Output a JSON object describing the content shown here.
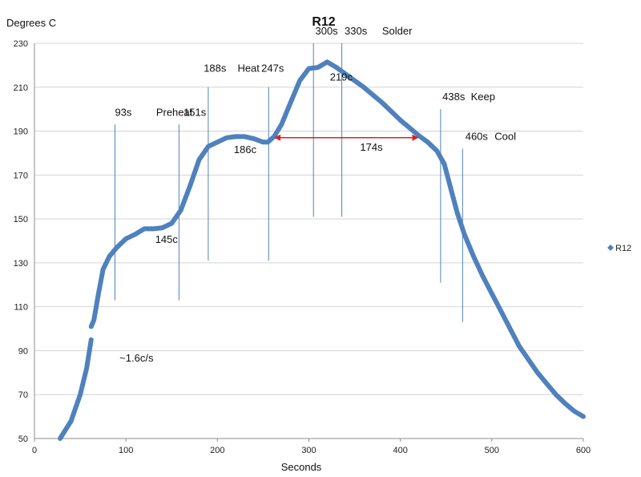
{
  "chart_data": {
    "type": "line",
    "title": "R12",
    "xlabel": "Seconds",
    "ylabel": "Degrees C",
    "xlim": [
      0,
      600
    ],
    "ylim": [
      50,
      230
    ],
    "x_ticks": [
      0,
      100,
      200,
      300,
      400,
      500,
      600
    ],
    "y_ticks": [
      50,
      70,
      90,
      110,
      130,
      150,
      170,
      190,
      210,
      230
    ],
    "grid": "horizontal",
    "legend": {
      "position": "right",
      "entries": [
        "R12"
      ]
    },
    "series": [
      {
        "name": "R12",
        "color": "#4F81BD",
        "segments": [
          [
            [
              28,
              50
            ],
            [
              40,
              58
            ],
            [
              50,
              70
            ],
            [
              57,
              82
            ],
            [
              62,
              95
            ]
          ],
          [
            [
              62,
              101
            ],
            [
              65,
              104
            ],
            [
              70,
              116
            ],
            [
              75,
              127
            ],
            [
              82,
              133
            ],
            [
              90,
              137
            ],
            [
              100,
              141
            ],
            [
              110,
              143
            ],
            [
              120,
              145.5
            ],
            [
              130,
              145.5
            ],
            [
              140,
              146
            ],
            [
              150,
              148
            ],
            [
              160,
              154
            ],
            [
              170,
              165
            ],
            [
              180,
              177
            ],
            [
              190,
              183
            ],
            [
              200,
              185
            ],
            [
              210,
              187
            ],
            [
              220,
              187.5
            ],
            [
              230,
              187.5
            ],
            [
              240,
              186.5
            ],
            [
              250,
              185
            ],
            [
              255,
              185
            ],
            [
              262,
              187.5
            ],
            [
              270,
              193
            ],
            [
              280,
              203
            ],
            [
              290,
              213
            ],
            [
              300,
              218.5
            ],
            [
              310,
              219
            ],
            [
              320,
              221.5
            ],
            [
              330,
              219
            ],
            [
              340,
              216
            ],
            [
              350,
              213
            ],
            [
              360,
              210
            ],
            [
              370,
              206.5
            ],
            [
              380,
              203
            ],
            [
              390,
              199
            ],
            [
              400,
              195
            ],
            [
              410,
              191.5
            ],
            [
              420,
              188
            ],
            [
              430,
              185
            ],
            [
              440,
              181
            ],
            [
              448,
              175
            ],
            [
              455,
              164
            ],
            [
              462,
              153
            ],
            [
              470,
              143
            ],
            [
              480,
              133
            ],
            [
              490,
              124
            ],
            [
              500,
              116
            ],
            [
              510,
              108
            ],
            [
              520,
              100
            ],
            [
              530,
              92
            ],
            [
              540,
              86
            ],
            [
              550,
              80
            ],
            [
              560,
              75
            ],
            [
              570,
              70
            ],
            [
              580,
              66
            ],
            [
              590,
              62.5
            ],
            [
              600,
              60
            ]
          ]
        ]
      }
    ],
    "markers": [
      {
        "x": 88,
        "y_top": 193,
        "y_bottom": 113
      },
      {
        "x": 158,
        "y_top": 193,
        "y_bottom": 113
      },
      {
        "x": 190,
        "y_top": 210,
        "y_bottom": 131
      },
      {
        "x": 256,
        "y_top": 210,
        "y_bottom": 131
      },
      {
        "x": 305,
        "y_top": 230,
        "y_bottom": 151
      },
      {
        "x": 336,
        "y_top": 230,
        "y_bottom": 151
      },
      {
        "x": 444,
        "y_top": 200,
        "y_bottom": 121
      },
      {
        "x": 468,
        "y_top": 182,
        "y_bottom": 103
      }
    ],
    "arrow": {
      "x_start": 262,
      "x_end": 420,
      "y": 187,
      "label": "174s",
      "label_at": [
        356,
        181
      ],
      "color": "#E02020"
    },
    "annotations": [
      {
        "text": "93s",
        "at": [
          88,
          197
        ]
      },
      {
        "text": "Preheat",
        "at": [
          133,
          197
        ]
      },
      {
        "text": "151s",
        "at": [
          163,
          197
        ]
      },
      {
        "text": "188s",
        "at": [
          185,
          217
        ]
      },
      {
        "text": "Heat",
        "at": [
          222,
          217
        ]
      },
      {
        "text": "247s",
        "at": [
          248,
          217
        ]
      },
      {
        "text": "300s",
        "at": [
          307,
          234
        ]
      },
      {
        "text": "330s",
        "at": [
          339,
          234
        ]
      },
      {
        "text": "Solder",
        "at": [
          380,
          234
        ]
      },
      {
        "text": "219c",
        "at": [
          323,
          213
        ]
      },
      {
        "text": "186c",
        "at": [
          218,
          180
        ]
      },
      {
        "text": "145c",
        "at": [
          132,
          139
        ]
      },
      {
        "text": "438s",
        "at": [
          446,
          204
        ]
      },
      {
        "text": "Keep",
        "at": [
          477,
          204
        ]
      },
      {
        "text": "460s",
        "at": [
          471,
          186
        ]
      },
      {
        "text": "Cool",
        "at": [
          503,
          186
        ]
      },
      {
        "text": "~1.6c/s",
        "at": [
          93,
          85
        ]
      }
    ]
  }
}
